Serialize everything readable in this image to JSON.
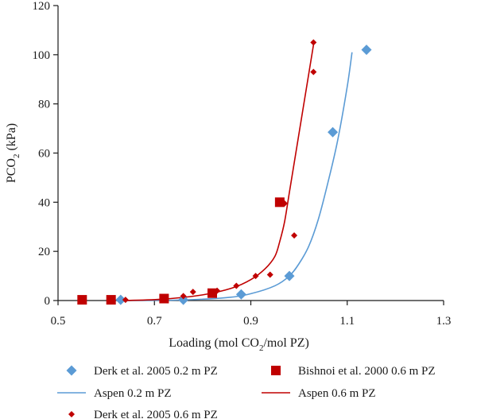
{
  "chart_data": {
    "type": "scatter",
    "xlabel": {
      "main": "Loading (mol CO",
      "sub": "2",
      "rest": "/mol PZ)"
    },
    "ylabel": {
      "main": "PCO",
      "sub": "2",
      "rest": " (kPa)"
    },
    "xlim": [
      0.5,
      1.3
    ],
    "ylim": [
      0,
      120
    ],
    "x_ticks": [
      0.5,
      0.7,
      0.9,
      1.1,
      1.3
    ],
    "x_tick_labels": [
      "0.5",
      "0.7",
      "0.9",
      "1.1",
      "1.3"
    ],
    "y_ticks": [
      0,
      20,
      40,
      60,
      80,
      100,
      120
    ],
    "y_tick_labels": [
      "0",
      "20",
      "40",
      "60",
      "80",
      "100",
      "120"
    ],
    "grid": false,
    "legend_position": "bottom",
    "series": [
      {
        "name": "Derk et al. 2005 0.2 m PZ",
        "kind": "marker",
        "marker": "diamond",
        "color": "#5b9bd5",
        "points": [
          [
            0.63,
            0.3
          ],
          [
            0.76,
            0.3
          ],
          [
            0.88,
            2.5
          ],
          [
            0.98,
            10.0
          ],
          [
            1.07,
            68.5
          ],
          [
            1.14,
            102.0
          ]
        ]
      },
      {
        "name": "Bishnoi et al. 2000 0.6 m PZ",
        "kind": "marker",
        "marker": "square",
        "color": "#c00000",
        "points": [
          [
            0.55,
            0.3
          ],
          [
            0.61,
            0.3
          ],
          [
            0.72,
            0.8
          ],
          [
            0.82,
            3.0
          ],
          [
            0.96,
            40.0
          ]
        ]
      },
      {
        "name": "Aspen 0.2 m PZ",
        "kind": "line",
        "color": "#5b9bd5",
        "points": [
          [
            0.63,
            0.0
          ],
          [
            0.75,
            0.2
          ],
          [
            0.85,
            1.2
          ],
          [
            0.9,
            2.8
          ],
          [
            0.95,
            6.0
          ],
          [
            0.98,
            10.0
          ],
          [
            1.0,
            15.0
          ],
          [
            1.02,
            22.0
          ],
          [
            1.04,
            33.0
          ],
          [
            1.06,
            48.0
          ],
          [
            1.08,
            65.0
          ],
          [
            1.1,
            87.0
          ],
          [
            1.11,
            101.0
          ]
        ]
      },
      {
        "name": "Aspen 0.6 m PZ",
        "kind": "line",
        "color": "#c00000",
        "points": [
          [
            0.64,
            0.0
          ],
          [
            0.72,
            0.6
          ],
          [
            0.8,
            2.3
          ],
          [
            0.86,
            5.0
          ],
          [
            0.9,
            8.5
          ],
          [
            0.93,
            13.0
          ],
          [
            0.95,
            18.0
          ],
          [
            0.96,
            24.0
          ],
          [
            0.97,
            32.0
          ],
          [
            0.98,
            44.0
          ],
          [
            0.99,
            56.0
          ],
          [
            1.0,
            68.0
          ],
          [
            1.01,
            80.0
          ],
          [
            1.02,
            92.0
          ],
          [
            1.03,
            104.0
          ]
        ]
      },
      {
        "name": "Derk et al. 2005 0.6 m PZ",
        "kind": "marker",
        "marker": "small-diamond",
        "color": "#c00000",
        "points": [
          [
            0.64,
            0.3
          ],
          [
            0.72,
            0.8
          ],
          [
            0.76,
            1.8
          ],
          [
            0.78,
            3.5
          ],
          [
            0.83,
            4.0
          ],
          [
            0.87,
            6.0
          ],
          [
            0.91,
            10.0
          ],
          [
            0.94,
            10.5
          ],
          [
            0.97,
            39.5
          ],
          [
            0.99,
            26.5
          ],
          [
            1.03,
            93.0
          ],
          [
            1.03,
            105.0
          ]
        ]
      }
    ]
  }
}
